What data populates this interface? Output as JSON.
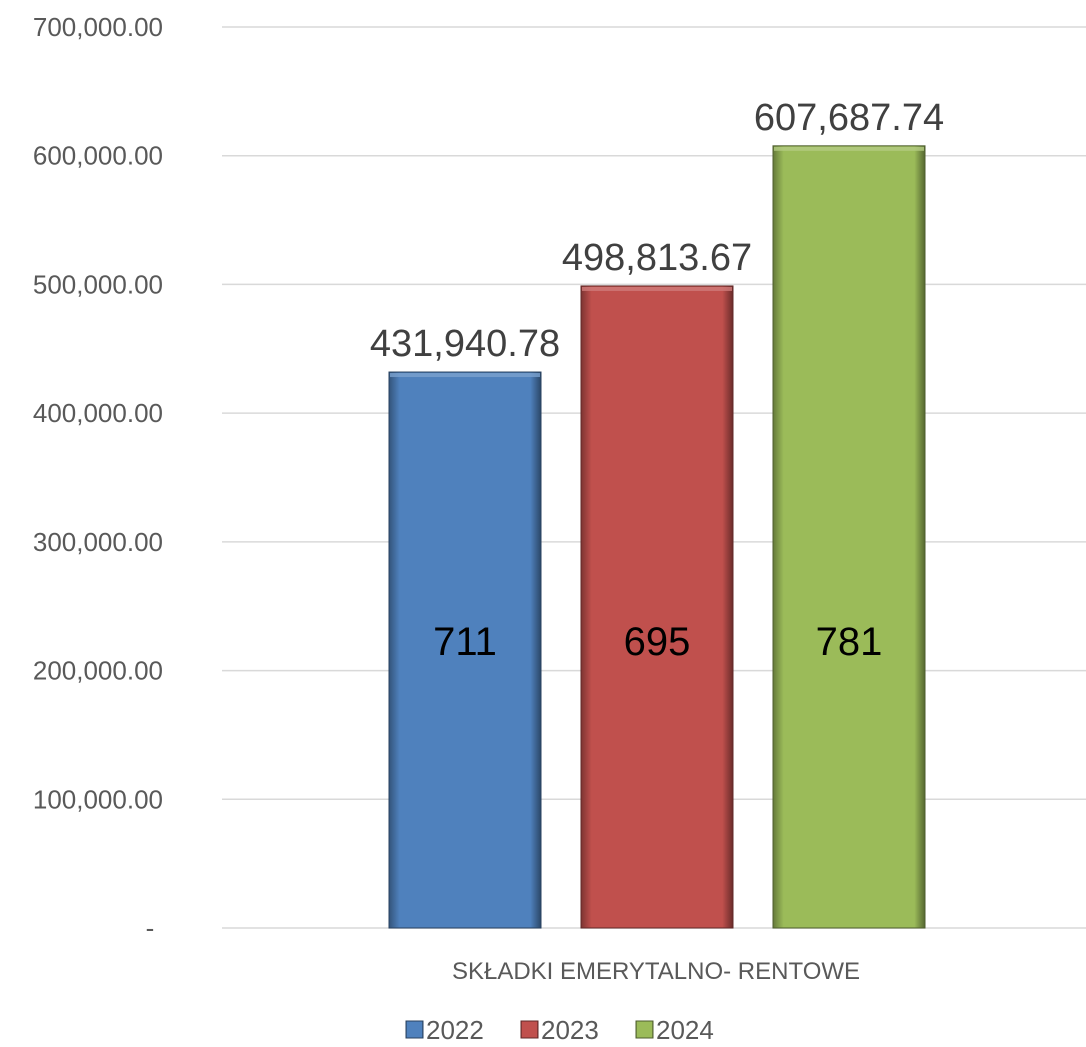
{
  "chart_data": {
    "type": "bar",
    "title": "",
    "xlabel": "",
    "ylabel": "",
    "categories": [
      "SKŁADKI EMERYTALNO- RENTOWE"
    ],
    "ylim": [
      0,
      700000
    ],
    "grid": true,
    "legend_position": "bottom",
    "y_ticks": [
      {
        "value": 0,
        "label": "-"
      },
      {
        "value": 100000,
        "label": "100,000.00"
      },
      {
        "value": 200000,
        "label": "200,000.00"
      },
      {
        "value": 300000,
        "label": "300,000.00"
      },
      {
        "value": 400000,
        "label": "400,000.00"
      },
      {
        "value": 500000,
        "label": "500,000.00"
      },
      {
        "value": 600000,
        "label": "600,000.00"
      },
      {
        "value": 700000,
        "label": "700,000.00"
      }
    ],
    "series": [
      {
        "name": "2022",
        "values": [
          431940.78
        ],
        "value_label": "431,940.78",
        "inner_label": "711",
        "color": "#4f81bd"
      },
      {
        "name": "2023",
        "values": [
          498813.67
        ],
        "value_label": "498,813.67",
        "inner_label": "695",
        "color": "#c0504d"
      },
      {
        "name": "2024",
        "values": [
          607687.74
        ],
        "value_label": "607,687.74",
        "inner_label": "781",
        "color": "#9bbb59"
      }
    ]
  }
}
